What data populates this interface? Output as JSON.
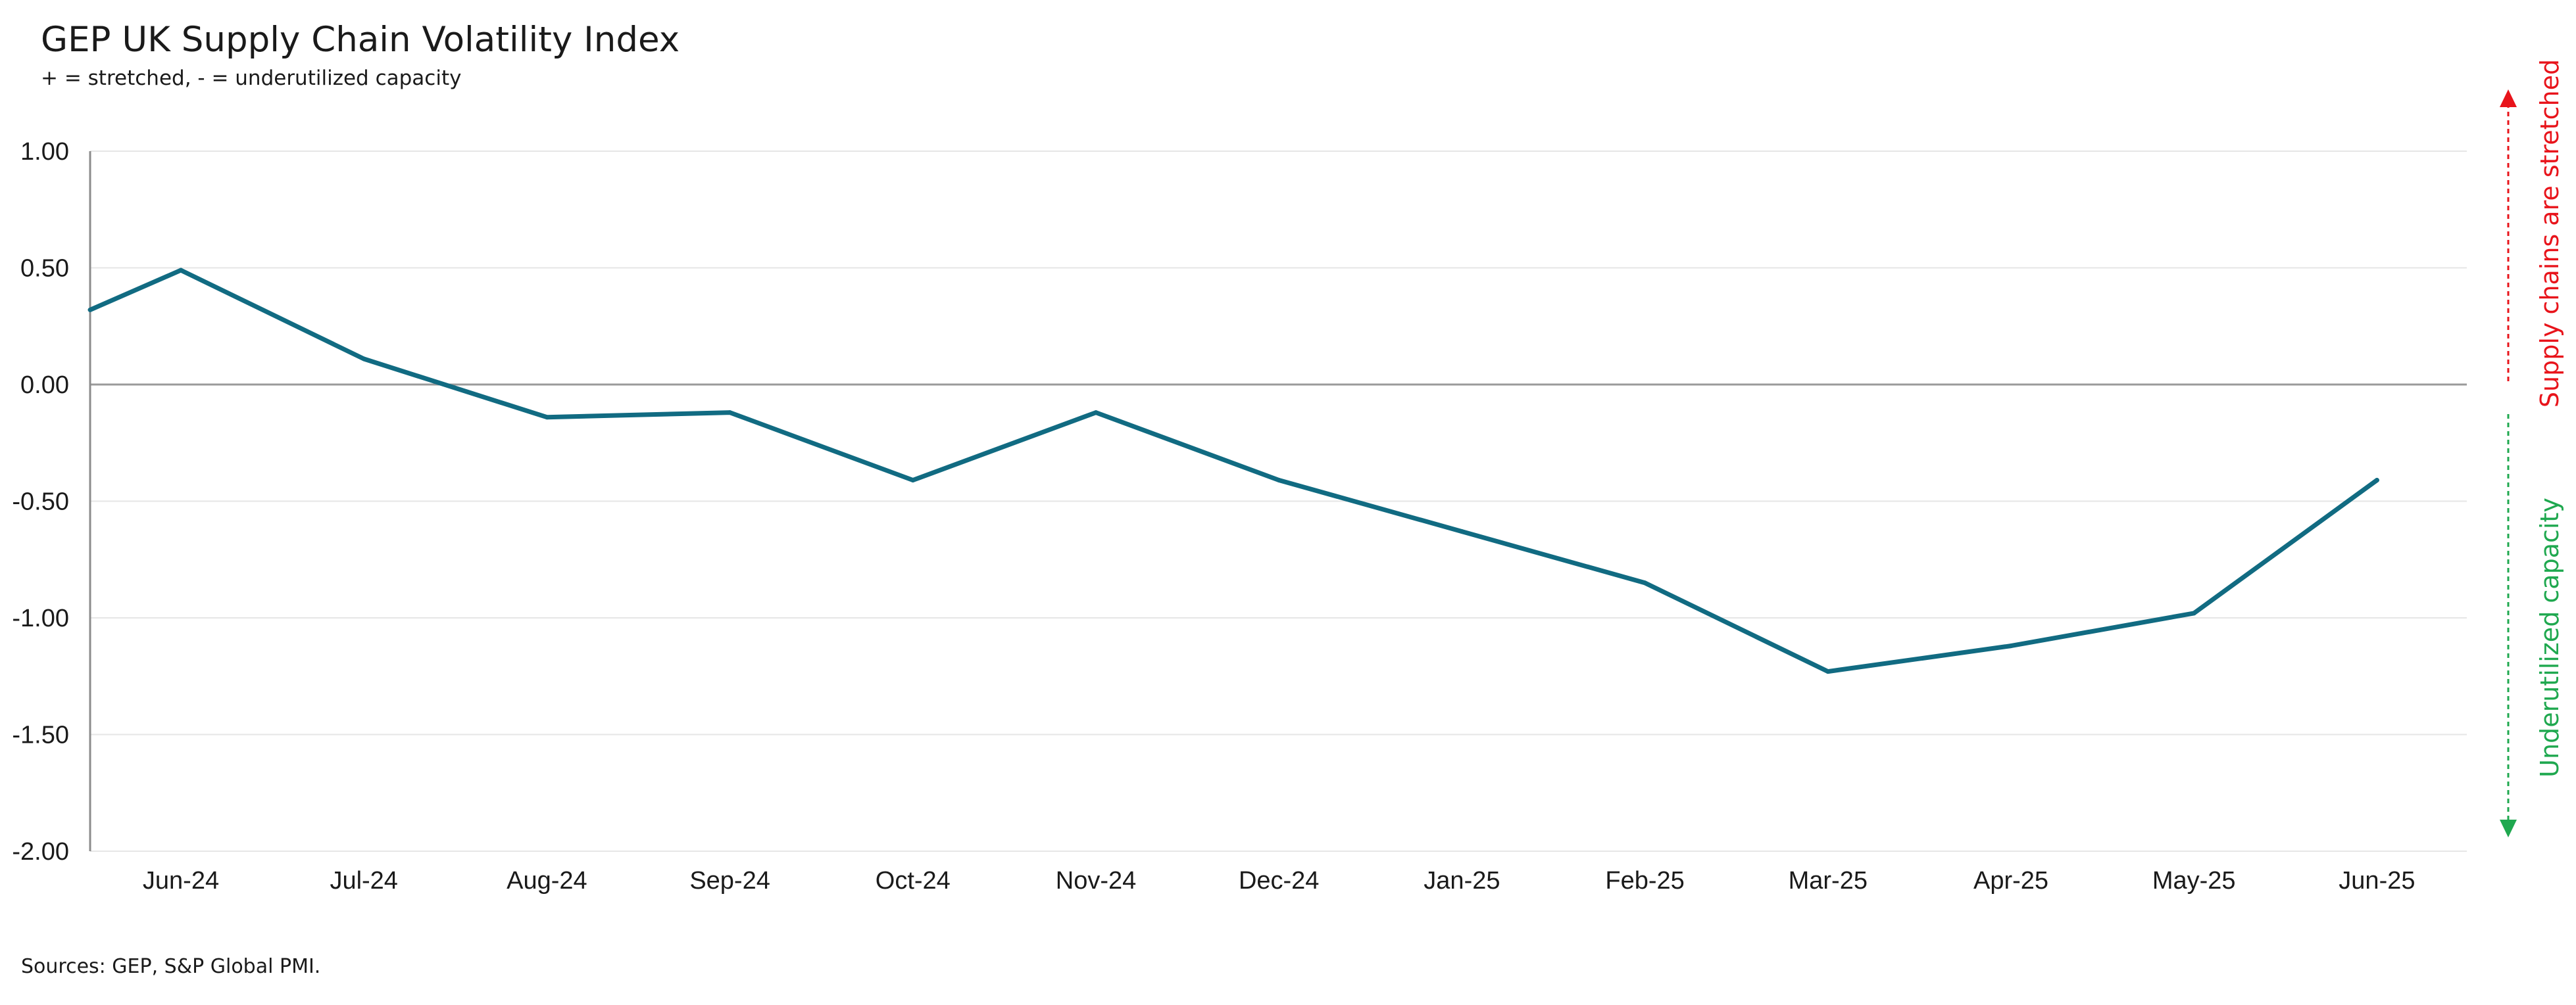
{
  "chart_data": {
    "type": "line",
    "title": "GEP UK Supply Chain Volatility Index",
    "subtitle": "+ = stretched, - = underutilized capacity",
    "source": "Sources: GEP, S&P Global PMI.",
    "categories": [
      "Jun-24",
      "Jul-24",
      "Aug-24",
      "Sep-24",
      "Oct-24",
      "Nov-24",
      "Dec-24",
      "Jan-25",
      "Feb-25",
      "Mar-25",
      "Apr-25",
      "May-25",
      "Jun-25"
    ],
    "series": [
      {
        "values": [
          0.49,
          0.11,
          -0.14,
          -0.12,
          -0.41,
          -0.12,
          -0.41,
          -0.63,
          -0.85,
          -1.23,
          -1.12,
          -0.98,
          -0.41
        ],
        "color": "#116b82"
      }
    ],
    "leading_value": 0.32,
    "ylim": [
      -2.0,
      1.0
    ],
    "yticks": [
      "1.00",
      "0.50",
      "0.00",
      "-0.50",
      "-1.00",
      "-1.50",
      "-2.00"
    ],
    "ytick_values": [
      1.0,
      0.5,
      0.0,
      -0.5,
      -1.0,
      -1.5,
      -2.0
    ],
    "grid": true,
    "annotations": {
      "up_label": "Supply chains are stretched",
      "up_color": "#e8141b",
      "down_label": "Underutilized capacity",
      "down_color": "#1fa84f"
    }
  }
}
